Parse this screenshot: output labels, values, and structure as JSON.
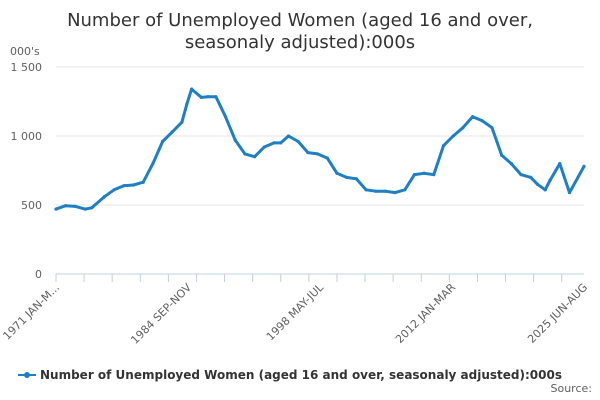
{
  "chart_data": {
    "type": "line",
    "title": "Number of Unemployed Women (aged 16 and over, seasonaly adjusted):000s",
    "title_lines": [
      "Number of Unemployed Women (aged 16 and over,",
      "seasonaly adjusted):000s"
    ],
    "ylabel": "000's",
    "xlabel": "",
    "ylim": [
      0,
      1500
    ],
    "yticks": [
      0,
      500,
      1000,
      1500
    ],
    "ytick_labels": [
      "0",
      "500",
      "1 000",
      "1 500"
    ],
    "xtick_labels": [
      "1971 JAN-M...",
      "1984 SEP-NOV",
      "1998 MAY-JUL",
      "2012 JAN-MAR",
      "2025 JUN-AUG"
    ],
    "grid": true,
    "legend_position": "bottom",
    "colors": {
      "series": "#1f7fc4",
      "grid": "#e6e6e6",
      "axis": "#c0d0e0"
    },
    "series": [
      {
        "name": "Number of Unemployed Women (aged 16 and over, seasonaly adjusted):000s",
        "x": [
          1971.0,
          1972.0,
          1973.0,
          1974.0,
          1974.7,
          1976.0,
          1977.0,
          1978.0,
          1979.0,
          1980.0,
          1981.0,
          1982.0,
          1983.0,
          1984.0,
          1984.5,
          1985.0,
          1986.0,
          1986.7,
          1987.5,
          1988.5,
          1989.5,
          1990.5,
          1991.5,
          1992.5,
          1993.5,
          1994.2,
          1995.0,
          1996.0,
          1997.0,
          1998.0,
          1999.0,
          2000.0,
          2001.0,
          2002.0,
          2003.0,
          2004.0,
          2005.0,
          2006.0,
          2007.0,
          2008.0,
          2009.0,
          2010.0,
          2011.0,
          2012.0,
          2013.0,
          2014.0,
          2015.0,
          2016.0,
          2017.0,
          2018.0,
          2019.0,
          2020.0,
          2020.7,
          2021.5,
          2022.0,
          2023.0,
          2024.0,
          2025.5
        ],
        "values": [
          470,
          495,
          490,
          470,
          480,
          560,
          610,
          640,
          645,
          665,
          800,
          960,
          1030,
          1100,
          1230,
          1340,
          1280,
          1285,
          1285,
          1140,
          970,
          870,
          850,
          920,
          950,
          950,
          1000,
          960,
          880,
          870,
          840,
          730,
          700,
          690,
          610,
          600,
          600,
          590,
          610,
          720,
          730,
          720,
          930,
          1000,
          1060,
          1140,
          1110,
          1060,
          860,
          800,
          720,
          700,
          650,
          610,
          680,
          800,
          590,
          780
        ]
      }
    ]
  },
  "source_label": "Source:"
}
